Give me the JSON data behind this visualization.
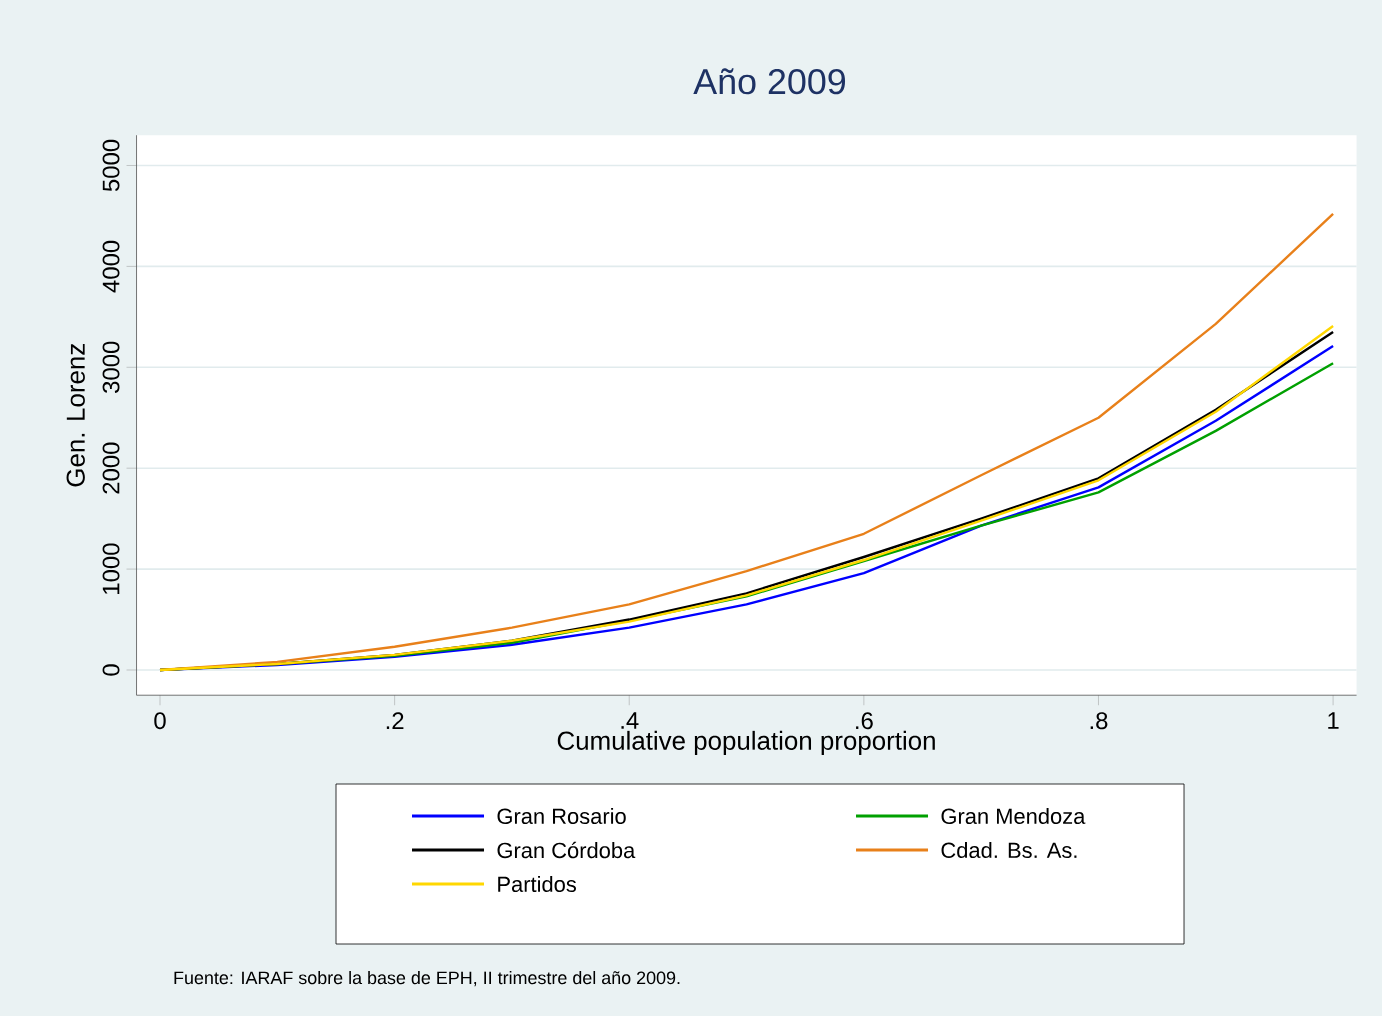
{
  "chart_data": {
    "type": "line",
    "title": "Año 2009",
    "xlabel": "Cumulative population proportion",
    "ylabel": "Gen. Lorenz",
    "x": [
      0,
      0.1,
      0.2,
      0.3,
      0.4,
      0.5,
      0.6,
      0.7,
      0.8,
      0.9,
      1
    ],
    "series": [
      {
        "name": "Gran Rosario",
        "color": "#0000ff",
        "values": [
          0,
          50,
          130,
          250,
          420,
          650,
          960,
          1430,
          1810,
          2470,
          3210
        ]
      },
      {
        "name": "Gran Mendoza",
        "color": "#00a000",
        "values": [
          0,
          60,
          140,
          270,
          490,
          730,
          1080,
          1430,
          1760,
          2370,
          3040
        ]
      },
      {
        "name": "Gran Córdoba",
        "color": "#000000",
        "values": [
          0,
          60,
          150,
          290,
          500,
          760,
          1120,
          1500,
          1900,
          2580,
          3350
        ]
      },
      {
        "name": "Cdad. Bs. As.",
        "color": "#e8801a",
        "values": [
          0,
          80,
          230,
          420,
          650,
          980,
          1350,
          1930,
          2500,
          3430,
          4520
        ]
      },
      {
        "name": "Partidos",
        "color": "#ffd700",
        "values": [
          0,
          60,
          150,
          290,
          480,
          740,
          1090,
          1480,
          1880,
          2560,
          3410
        ]
      }
    ],
    "xlim": [
      -0.02,
      1.02
    ],
    "ylim": [
      -250,
      5300
    ],
    "xticks": [
      0,
      {
        "value": 0.2,
        "label": ".2"
      },
      {
        "value": 0.4,
        "label": ".4"
      },
      {
        "value": 0.6,
        "label": ".6"
      },
      {
        "value": 0.8,
        "label": ".8"
      },
      1
    ],
    "yticks": [
      0,
      1000,
      2000,
      3000,
      4000,
      5000
    ],
    "grid": "y",
    "legend": "bottom",
    "annotations": [
      "Fuente: IARAF sobre la base de EPH, II trimestre del año 2009."
    ]
  }
}
